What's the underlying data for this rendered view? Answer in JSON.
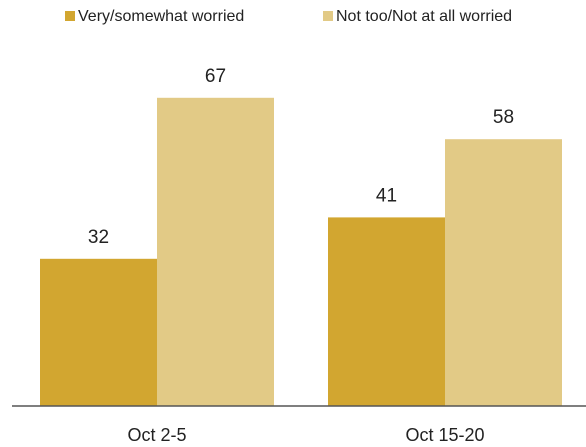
{
  "chart_data": {
    "type": "bar",
    "categories": [
      "Oct 2-5",
      "Oct 15-20"
    ],
    "series": [
      {
        "name": "Very/somewhat worried",
        "values": [
          32,
          41
        ],
        "color": "#D2A630"
      },
      {
        "name": "Not too/Not at all worried",
        "values": [
          67,
          58
        ],
        "color": "#E2CA86"
      }
    ],
    "ylim": [
      0,
      100
    ],
    "grid": false,
    "legend": "top-right",
    "show_value_labels": true
  }
}
